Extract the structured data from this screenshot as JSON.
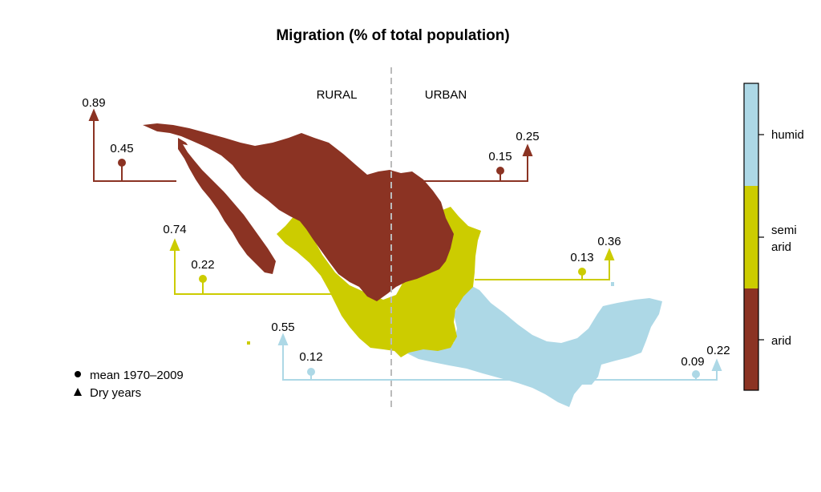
{
  "title": "Migration (% of total population)",
  "divider_labels": {
    "left": "RURAL",
    "right": "URBAN"
  },
  "colors": {
    "arid": "#8b3323",
    "semi_arid": "#cccc00",
    "humid": "#add8e6",
    "divider": "#bbbbbb"
  },
  "climate_scale": [
    {
      "name": "humid",
      "color": "#add8e6"
    },
    {
      "name": "semi arid",
      "lines": [
        "semi",
        "arid"
      ],
      "color": "#cccc00"
    },
    {
      "name": "arid",
      "color": "#8b3323"
    }
  ],
  "legend": {
    "mean_label": "mean 1970–2009",
    "dry_label": "Dry years"
  },
  "chart_data": {
    "type": "map",
    "title": "Migration (% of total population)",
    "regions": [
      {
        "climate": "arid",
        "rural_mean": "0.45",
        "rural_dry": "0.89",
        "urban_mean": "0.15",
        "urban_dry": "0.25"
      },
      {
        "climate": "semi arid",
        "rural_mean": "0.22",
        "rural_dry": "0.74",
        "urban_mean": "0.13",
        "urban_dry": "0.36"
      },
      {
        "climate": "humid",
        "rural_mean": "0.12",
        "rural_dry": "0.55",
        "urban_mean": "0.09",
        "urban_dry": "0.22"
      }
    ]
  }
}
